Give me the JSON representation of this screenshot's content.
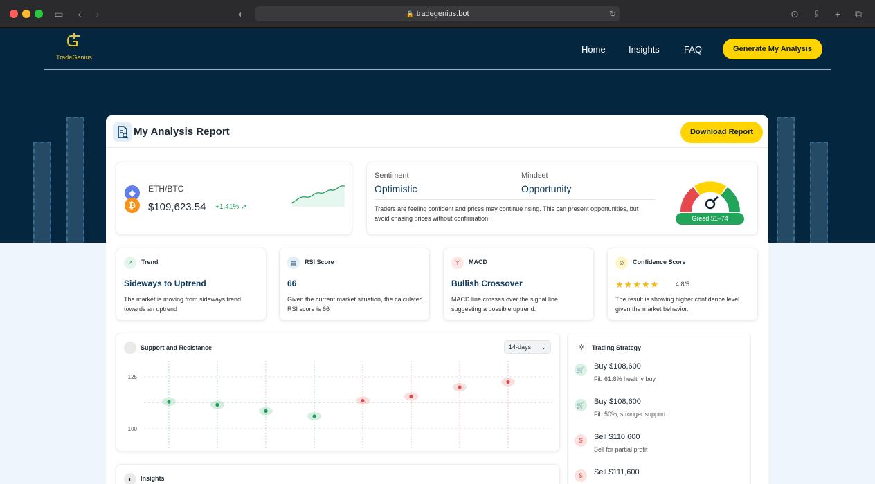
{
  "browser": {
    "url": "tradegenius.bot"
  },
  "nav": {
    "logo_name": "TradeGenius",
    "links": [
      "Home",
      "Insights",
      "FAQ"
    ],
    "cta_label": "Generate My Analysis"
  },
  "report": {
    "title": "My Analysis Report",
    "download_label": "Download Report",
    "pair": {
      "label": "ETH/BTC",
      "price": "$109,623.54",
      "change": "+1.41% ↗",
      "icons": [
        "ethereum-icon",
        "bitcoin-icon"
      ]
    },
    "sentiment": {
      "sentiment_label": "Sentiment",
      "sentiment_value": "Optimistic",
      "mindset_label": "Mindset",
      "mindset_value": "Opportunity",
      "description": "Traders are feeling confident and prices may continue rising. This can present opportunities, but avoid chasing prices without confirmation.",
      "gauge_label": "Greed 51–74",
      "gauge_colors": [
        "#e5484d",
        "#ffd400",
        "#22a45a"
      ]
    },
    "metrics": [
      {
        "label": "Trend",
        "value": "Sideways to Uptrend",
        "description": "The market is moving from sideways trend towards an uptrend",
        "icon": "trend-icon"
      },
      {
        "label": "RSI Score",
        "value": "66",
        "description": "Given the current market situation, the calculated RSI score is 66",
        "icon": "rsi-icon"
      },
      {
        "label": "MACD",
        "value": "Bullish Crossover",
        "description": "MACD line crosses over the signal line, suggesting a possible uptrend.",
        "icon": "macd-icon"
      },
      {
        "label": "Confidence Score",
        "stars": "★★★★★",
        "rating": "4.8/5",
        "description": "The result is showing higher confidence level given the market behavior.",
        "icon": "confidence-icon"
      }
    ],
    "support_resistance": {
      "title": "Support and Resistance",
      "range": "14-days"
    },
    "strategy": {
      "title": "Trading Strategy",
      "items": [
        {
          "action": "Buy $108,600",
          "note": "Fib 61.8% healthy buy",
          "kind": "buy"
        },
        {
          "action": "Buy $108,600",
          "note": "Fib 50%, stronger support",
          "kind": "buy"
        },
        {
          "action": "Sell $110,600",
          "note": "Sell for partial profit",
          "kind": "sell"
        },
        {
          "action": "Sell $111,600",
          "note": "",
          "kind": "sell"
        }
      ]
    },
    "insights_title": "Insights"
  },
  "chart_data": {
    "type": "scatter",
    "y_ticks": [
      "125",
      "100"
    ],
    "ylim": [
      95,
      130
    ],
    "points": [
      {
        "y": 113,
        "color": "green"
      },
      {
        "y": 111.5,
        "color": "green"
      },
      {
        "y": 108.5,
        "color": "green"
      },
      {
        "y": 106,
        "color": "green"
      },
      {
        "y": 113.5,
        "color": "red"
      },
      {
        "y": 115.5,
        "color": "red"
      },
      {
        "y": 120,
        "color": "red"
      },
      {
        "y": 122.5,
        "color": "red"
      }
    ],
    "colors": {
      "green": "#1ea05a",
      "red": "#e04a4a"
    }
  }
}
